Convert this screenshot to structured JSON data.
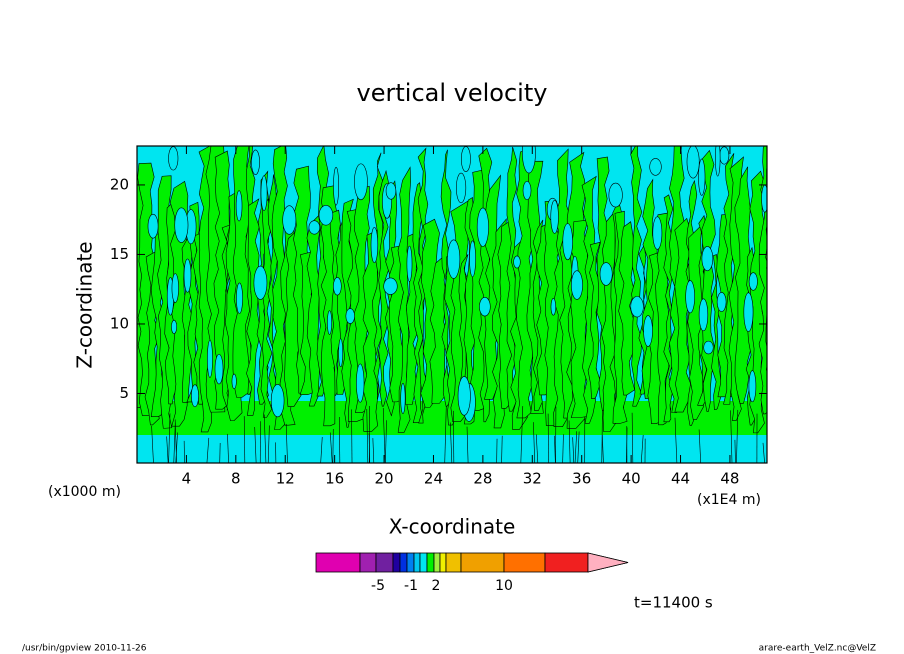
{
  "chart_data": {
    "type": "contour",
    "title": "vertical velocity",
    "xlabel": "X-coordinate",
    "ylabel": "Z-coordinate",
    "x_unit": "(x1E4 m)",
    "y_unit": "(x1000 m)",
    "xlim": [
      0,
      51
    ],
    "ylim": [
      0,
      22.8
    ],
    "xticks": [
      4,
      8,
      12,
      16,
      20,
      24,
      28,
      32,
      36,
      40,
      44,
      48
    ],
    "yticks": [
      5,
      10,
      15,
      20
    ],
    "fill_colors": [
      "#00e5f0",
      "#00f000"
    ],
    "colorbar": {
      "colors": [
        "#e000b0",
        "#a020b0",
        "#7020a0",
        "#2000a0",
        "#0030e0",
        "#0080f0",
        "#00c8f0",
        "#00e5f0",
        "#00f000",
        "#a0f040",
        "#f0f000",
        "#f0c000",
        "#f0a000",
        "#ff7000",
        "#f02020",
        "#ff8080",
        "#ffb0c0"
      ],
      "ticks": [
        "-5",
        "-1",
        "2",
        "10"
      ]
    },
    "annotation": "t=11400 s",
    "footer_left": "/usr/bin/gpview   2010-11-26",
    "footer_right": "arare-earth_VelZ.nc@VelZ"
  }
}
